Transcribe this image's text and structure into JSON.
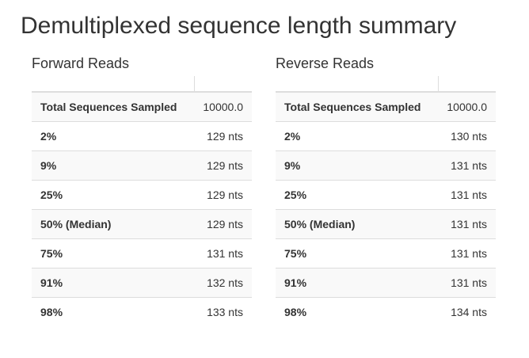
{
  "page": {
    "title": "Demultiplexed sequence length summary"
  },
  "colors": {
    "text": "#333333",
    "row_stripe": "#f9f9f9",
    "table_border": "#dddddd",
    "background": "#ffffff"
  },
  "tables": [
    {
      "heading": "Forward Reads",
      "rows": [
        {
          "label": "Total Sequences Sampled",
          "value": "10000.0"
        },
        {
          "label": "2%",
          "value": "129 nts"
        },
        {
          "label": "9%",
          "value": "129 nts"
        },
        {
          "label": "25%",
          "value": "129 nts"
        },
        {
          "label": "50% (Median)",
          "value": "129 nts"
        },
        {
          "label": "75%",
          "value": "131 nts"
        },
        {
          "label": "91%",
          "value": "132 nts"
        },
        {
          "label": "98%",
          "value": "133 nts"
        }
      ]
    },
    {
      "heading": "Reverse Reads",
      "rows": [
        {
          "label": "Total Sequences Sampled",
          "value": "10000.0"
        },
        {
          "label": "2%",
          "value": "130 nts"
        },
        {
          "label": "9%",
          "value": "131 nts"
        },
        {
          "label": "25%",
          "value": "131 nts"
        },
        {
          "label": "50% (Median)",
          "value": "131 nts"
        },
        {
          "label": "75%",
          "value": "131 nts"
        },
        {
          "label": "91%",
          "value": "131 nts"
        },
        {
          "label": "98%",
          "value": "134 nts"
        }
      ]
    }
  ]
}
